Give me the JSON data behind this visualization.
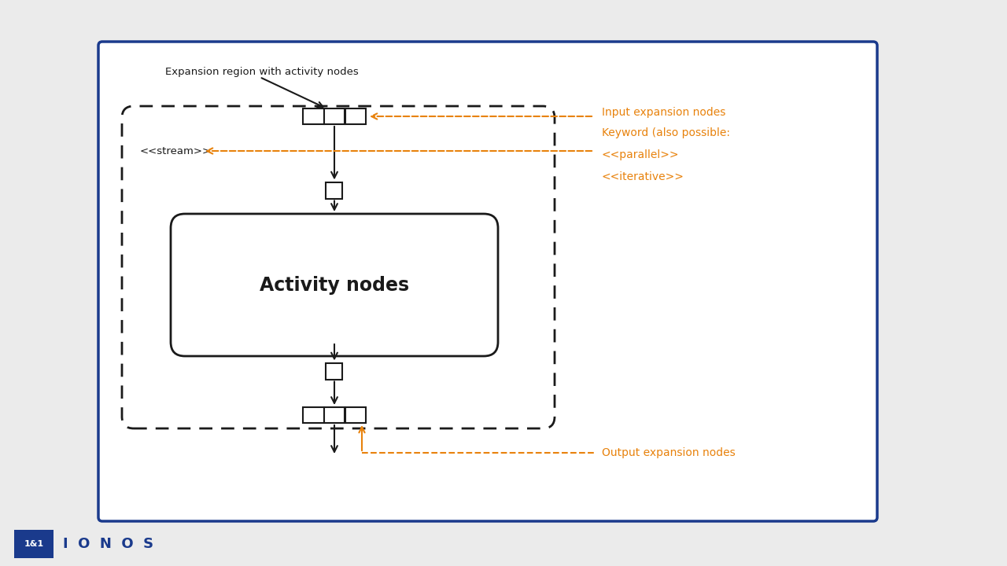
{
  "bg_color": "#ebebeb",
  "card_bg": "#ffffff",
  "card_border": "#1a3a8c",
  "orange": "#e8820c",
  "dark": "#1a1a1a",
  "blue_dark": "#1a3a8c",
  "title_label": "Expansion region with activity nodes",
  "input_label": "Input expansion nodes",
  "output_label": "Output expansion nodes",
  "stream_label": "<<stream>>",
  "activity_label": "Activity nodes",
  "keyword_line1": "Keyword (also possible:",
  "keyword_line2": "<<parallel>>",
  "keyword_line3": "<<iterative>>"
}
